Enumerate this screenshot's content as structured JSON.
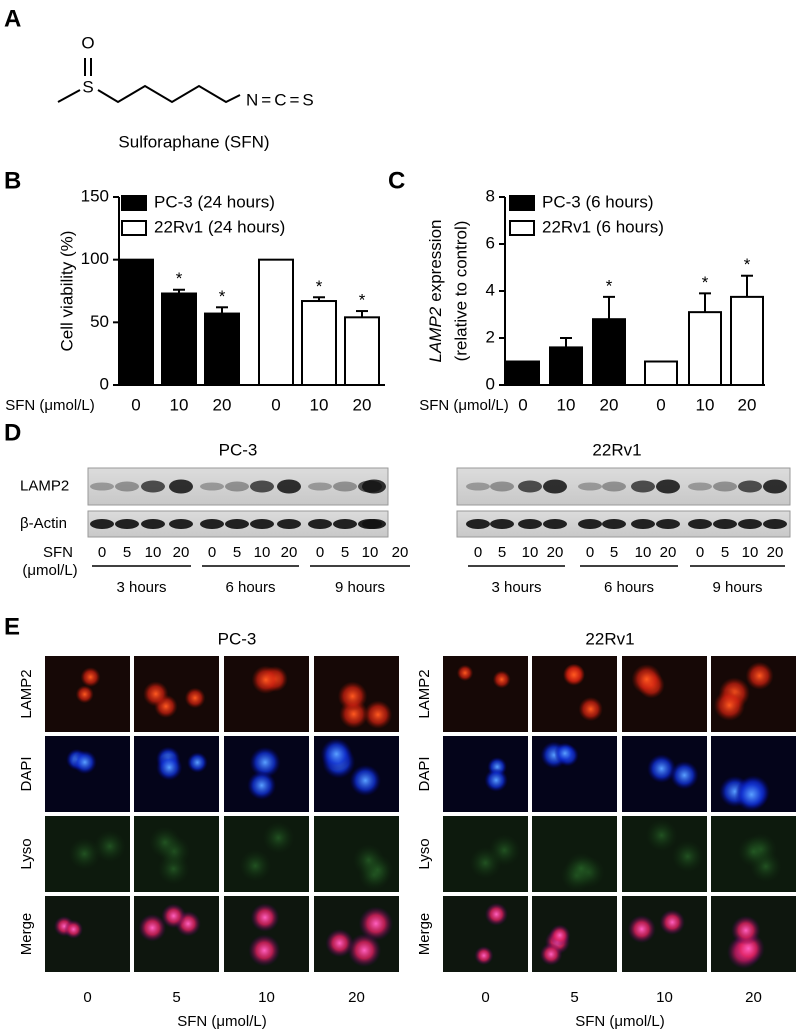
{
  "panel_labels": [
    "A",
    "B",
    "C",
    "D",
    "E"
  ],
  "structure": {
    "oxygen": "O",
    "sulfur": "S",
    "isothiocyanate": "N=C=S",
    "caption": "Sulforaphane (SFN)"
  },
  "chart_data": [
    {
      "type": "bar",
      "x_label": "SFN (μmol/L)",
      "y_label": "Cell viability (%)",
      "categories": [
        "0",
        "10",
        "20",
        "0",
        "10",
        "20"
      ],
      "series": [
        {
          "name": "PC-3 (24 hours)",
          "color": "#000000",
          "values": [
            100,
            73,
            57,
            null,
            null,
            null
          ],
          "errors": [
            null,
            3,
            5,
            null,
            null,
            null
          ]
        },
        {
          "name": "22Rv1 (24 hours)",
          "color": "#ffffff",
          "values": [
            null,
            null,
            null,
            100,
            67,
            54
          ],
          "errors": [
            null,
            null,
            null,
            null,
            3,
            5
          ]
        }
      ],
      "annotations": [
        null,
        "*",
        "*",
        null,
        "*",
        "*"
      ],
      "ylim": [
        0,
        150
      ],
      "yticks": [
        0,
        50,
        100,
        150
      ],
      "legend": "upper-left"
    },
    {
      "type": "bar",
      "x_label": "SFN (μmol/L)",
      "y_label": {
        "gene": "LAMP2",
        "rest": "expression",
        "note": "(relative to control)"
      },
      "categories": [
        "0",
        "10",
        "20",
        "0",
        "10",
        "20"
      ],
      "series": [
        {
          "name": "PC-3 (6 hours)",
          "color": "#000000",
          "values": [
            1,
            1.6,
            2.8,
            null,
            null,
            null
          ],
          "errors": [
            null,
            0.4,
            0.95,
            null,
            null,
            null
          ]
        },
        {
          "name": "22Rv1 (6 hours)",
          "color": "#ffffff",
          "values": [
            null,
            null,
            null,
            1,
            3.1,
            3.75
          ],
          "errors": [
            null,
            null,
            null,
            null,
            0.8,
            0.9
          ]
        }
      ],
      "annotations": [
        null,
        null,
        "*",
        null,
        "*",
        "*"
      ],
      "ylim": [
        0,
        8
      ],
      "yticks": [
        0,
        2,
        4,
        6,
        8
      ],
      "legend": "upper-left"
    }
  ],
  "blot": {
    "cell_lines": [
      "PC-3",
      "22Rv1"
    ],
    "rows": [
      "LAMP2",
      "β-Actin"
    ],
    "dose_title": [
      "SFN",
      "(μmol/L)"
    ],
    "doses": [
      0,
      5,
      10,
      20
    ],
    "times": [
      "3 hours",
      "6 hours",
      "9 hours"
    ]
  },
  "imaging": {
    "cell_lines": [
      "PC-3",
      "22Rv1"
    ],
    "rows": [
      "LAMP2",
      "DAPI",
      "Lyso",
      "Merge"
    ],
    "doses": [
      0,
      5,
      10,
      20
    ],
    "x_label": "SFN (μmol/L)"
  }
}
